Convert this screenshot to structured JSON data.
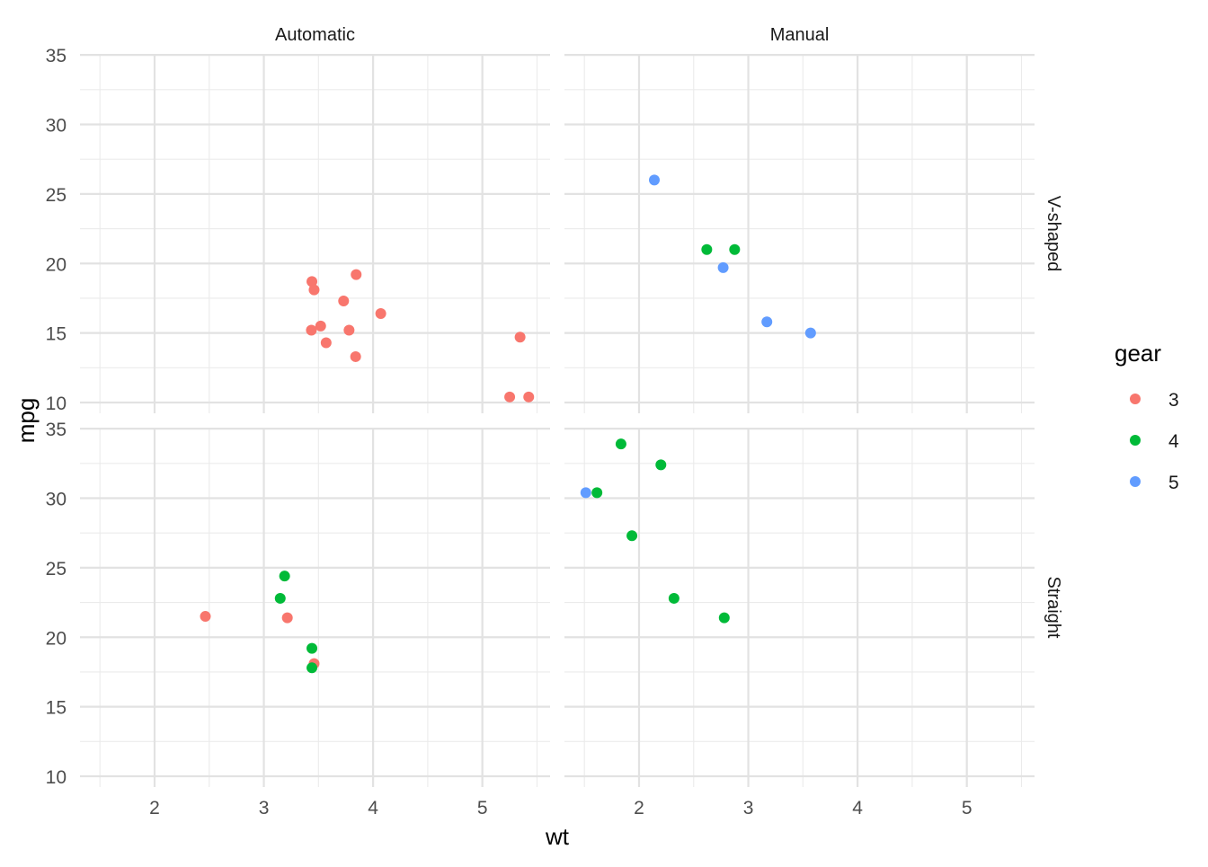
{
  "chart_data": {
    "type": "scatter",
    "xlabel": "wt",
    "ylabel": "mpg",
    "x_ticks": [
      2,
      3,
      4,
      5
    ],
    "y_ticks": [
      10,
      15,
      20,
      25,
      30,
      35
    ],
    "xlim": [
      1.513,
      5.424
    ],
    "ylim": [
      10.4,
      33.9
    ],
    "grid": true,
    "legend": {
      "title": "gear",
      "position": "right",
      "entries": [
        {
          "label": "3",
          "color": "#F8766D"
        },
        {
          "label": "4",
          "color": "#00BA38"
        },
        {
          "label": "5",
          "color": "#619CFF"
        }
      ]
    },
    "facet_cols": [
      "Automatic",
      "Manual"
    ],
    "facet_rows": [
      "V-shaped",
      "Straight"
    ],
    "panels": [
      {
        "col": "Automatic",
        "row": "V-shaped",
        "points": [
          {
            "wt": 3.44,
            "mpg": 18.7,
            "gear": "3"
          },
          {
            "wt": 3.46,
            "mpg": 18.1,
            "gear": "3"
          },
          {
            "wt": 3.57,
            "mpg": 14.3,
            "gear": "3"
          },
          {
            "wt": 4.07,
            "mpg": 16.4,
            "gear": "3"
          },
          {
            "wt": 3.73,
            "mpg": 17.3,
            "gear": "3"
          },
          {
            "wt": 3.78,
            "mpg": 15.2,
            "gear": "3"
          },
          {
            "wt": 5.25,
            "mpg": 10.4,
            "gear": "3"
          },
          {
            "wt": 5.424,
            "mpg": 10.4,
            "gear": "3"
          },
          {
            "wt": 5.345,
            "mpg": 14.7,
            "gear": "3"
          },
          {
            "wt": 3.52,
            "mpg": 15.5,
            "gear": "3"
          },
          {
            "wt": 3.435,
            "mpg": 15.2,
            "gear": "3"
          },
          {
            "wt": 3.84,
            "mpg": 13.3,
            "gear": "3"
          },
          {
            "wt": 3.845,
            "mpg": 19.2,
            "gear": "3"
          }
        ]
      },
      {
        "col": "Manual",
        "row": "V-shaped",
        "points": [
          {
            "wt": 2.62,
            "mpg": 21.0,
            "gear": "4"
          },
          {
            "wt": 2.875,
            "mpg": 21.0,
            "gear": "4"
          },
          {
            "wt": 2.14,
            "mpg": 26.0,
            "gear": "5"
          },
          {
            "wt": 3.17,
            "mpg": 15.8,
            "gear": "5"
          },
          {
            "wt": 2.77,
            "mpg": 19.7,
            "gear": "5"
          },
          {
            "wt": 3.57,
            "mpg": 15.0,
            "gear": "5"
          }
        ]
      },
      {
        "col": "Automatic",
        "row": "Straight",
        "points": [
          {
            "wt": 3.215,
            "mpg": 21.4,
            "gear": "3"
          },
          {
            "wt": 3.46,
            "mpg": 18.1,
            "gear": "3"
          },
          {
            "wt": 2.465,
            "mpg": 21.5,
            "gear": "3"
          },
          {
            "wt": 3.19,
            "mpg": 24.4,
            "gear": "4"
          },
          {
            "wt": 3.15,
            "mpg": 22.8,
            "gear": "4"
          },
          {
            "wt": 3.44,
            "mpg": 19.2,
            "gear": "4"
          },
          {
            "wt": 3.44,
            "mpg": 17.8,
            "gear": "4"
          }
        ]
      },
      {
        "col": "Manual",
        "row": "Straight",
        "points": [
          {
            "wt": 2.32,
            "mpg": 22.8,
            "gear": "4"
          },
          {
            "wt": 2.2,
            "mpg": 32.4,
            "gear": "4"
          },
          {
            "wt": 1.615,
            "mpg": 30.4,
            "gear": "4"
          },
          {
            "wt": 1.835,
            "mpg": 33.9,
            "gear": "4"
          },
          {
            "wt": 1.935,
            "mpg": 27.3,
            "gear": "4"
          },
          {
            "wt": 2.78,
            "mpg": 21.4,
            "gear": "4"
          },
          {
            "wt": 1.513,
            "mpg": 30.4,
            "gear": "5"
          }
        ]
      }
    ]
  }
}
